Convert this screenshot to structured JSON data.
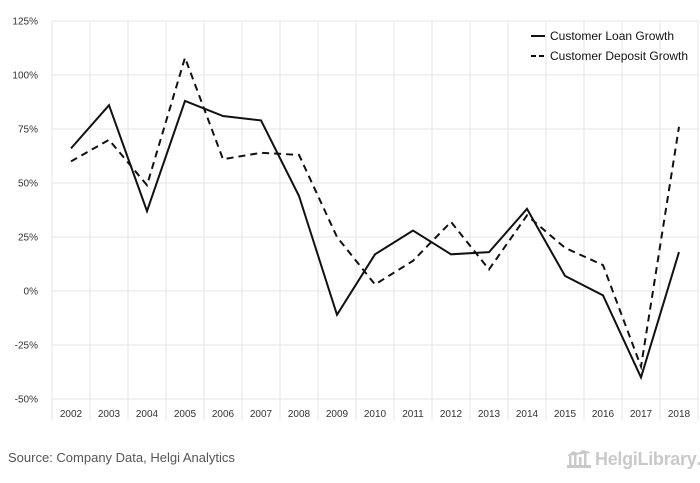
{
  "chart_data": {
    "type": "line",
    "title": "",
    "xlabel": "",
    "ylabel": "",
    "categories": [
      "2002",
      "2003",
      "2004",
      "2005",
      "2006",
      "2007",
      "2008",
      "2009",
      "2010",
      "2011",
      "2012",
      "2013",
      "2014",
      "2015",
      "2016",
      "2017",
      "2018"
    ],
    "series": [
      {
        "name": "Customer Loan Growth",
        "style": "solid",
        "color": "#111111",
        "values": [
          66,
          86,
          37,
          88,
          81,
          79,
          44,
          -11,
          17,
          28,
          17,
          18,
          38,
          7,
          -2,
          -40,
          18
        ]
      },
      {
        "name": "Customer Deposit Growth",
        "style": "dashed",
        "color": "#111111",
        "values": [
          60,
          70,
          49,
          108,
          61,
          64,
          63,
          25,
          3,
          14,
          32,
          10,
          35,
          20,
          12,
          -35,
          76
        ]
      }
    ],
    "ylim": [
      -50,
      125
    ],
    "yticks": [
      -50,
      -25,
      0,
      25,
      50,
      75,
      100,
      125
    ],
    "ytick_suffix": "%",
    "grid": true,
    "legend_position": "top-right"
  },
  "footer": {
    "source": "Source: Company Data, Helgi Analytics",
    "brand_name": "HelgiLibrary",
    "brand_dot": "."
  },
  "colors": {
    "grid": "#e6e6e6",
    "text": "#333333",
    "brand": "#c9c9c9"
  },
  "icons": {
    "brand": "library-building-icon"
  }
}
